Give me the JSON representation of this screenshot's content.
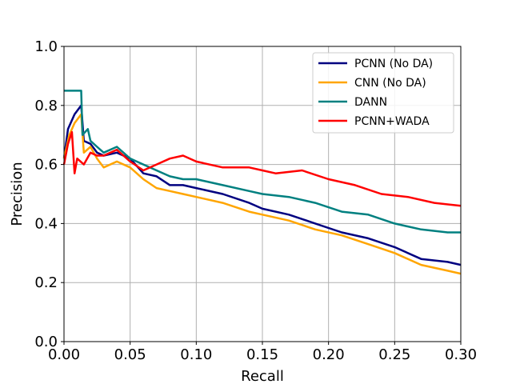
{
  "chart_data": {
    "type": "line",
    "title": "",
    "xlabel": "Recall",
    "ylabel": "Precision",
    "xlim": [
      0.0,
      0.3
    ],
    "ylim": [
      0.0,
      1.0
    ],
    "grid": true,
    "legend_position": "top-right",
    "xticks": [
      "0.00",
      "0.05",
      "0.10",
      "0.15",
      "0.20",
      "0.25",
      "0.30"
    ],
    "yticks": [
      "0.0",
      "0.2",
      "0.4",
      "0.6",
      "0.8",
      "1.0"
    ],
    "series": [
      {
        "name": "PCNN (No DA)",
        "color": "#000080",
        "points": [
          [
            0.0,
            0.62
          ],
          [
            0.003,
            0.72
          ],
          [
            0.008,
            0.77
          ],
          [
            0.013,
            0.8
          ],
          [
            0.015,
            0.68
          ],
          [
            0.02,
            0.67
          ],
          [
            0.025,
            0.64
          ],
          [
            0.03,
            0.63
          ],
          [
            0.04,
            0.64
          ],
          [
            0.05,
            0.62
          ],
          [
            0.06,
            0.57
          ],
          [
            0.07,
            0.56
          ],
          [
            0.08,
            0.53
          ],
          [
            0.09,
            0.53
          ],
          [
            0.1,
            0.52
          ],
          [
            0.12,
            0.5
          ],
          [
            0.14,
            0.47
          ],
          [
            0.15,
            0.45
          ],
          [
            0.17,
            0.43
          ],
          [
            0.19,
            0.4
          ],
          [
            0.21,
            0.37
          ],
          [
            0.23,
            0.35
          ],
          [
            0.25,
            0.32
          ],
          [
            0.27,
            0.28
          ],
          [
            0.29,
            0.27
          ],
          [
            0.3,
            0.26
          ]
        ]
      },
      {
        "name": "CNN (No DA)",
        "color": "#FFA500",
        "points": [
          [
            0.0,
            0.62
          ],
          [
            0.004,
            0.7
          ],
          [
            0.008,
            0.74
          ],
          [
            0.013,
            0.77
          ],
          [
            0.015,
            0.64
          ],
          [
            0.02,
            0.66
          ],
          [
            0.025,
            0.62
          ],
          [
            0.03,
            0.59
          ],
          [
            0.04,
            0.61
          ],
          [
            0.05,
            0.59
          ],
          [
            0.06,
            0.55
          ],
          [
            0.07,
            0.52
          ],
          [
            0.08,
            0.51
          ],
          [
            0.09,
            0.5
          ],
          [
            0.1,
            0.49
          ],
          [
            0.12,
            0.47
          ],
          [
            0.14,
            0.44
          ],
          [
            0.15,
            0.43
          ],
          [
            0.17,
            0.41
          ],
          [
            0.19,
            0.38
          ],
          [
            0.21,
            0.36
          ],
          [
            0.23,
            0.33
          ],
          [
            0.25,
            0.3
          ],
          [
            0.27,
            0.26
          ],
          [
            0.29,
            0.24
          ],
          [
            0.3,
            0.23
          ]
        ]
      },
      {
        "name": "DANN",
        "color": "#008080",
        "points": [
          [
            0.0,
            0.85
          ],
          [
            0.013,
            0.85
          ],
          [
            0.014,
            0.7
          ],
          [
            0.018,
            0.72
          ],
          [
            0.02,
            0.68
          ],
          [
            0.025,
            0.66
          ],
          [
            0.03,
            0.64
          ],
          [
            0.04,
            0.66
          ],
          [
            0.05,
            0.62
          ],
          [
            0.06,
            0.6
          ],
          [
            0.07,
            0.58
          ],
          [
            0.08,
            0.56
          ],
          [
            0.09,
            0.55
          ],
          [
            0.1,
            0.55
          ],
          [
            0.12,
            0.53
          ],
          [
            0.14,
            0.51
          ],
          [
            0.15,
            0.5
          ],
          [
            0.17,
            0.49
          ],
          [
            0.19,
            0.47
          ],
          [
            0.21,
            0.44
          ],
          [
            0.23,
            0.43
          ],
          [
            0.25,
            0.4
          ],
          [
            0.27,
            0.38
          ],
          [
            0.29,
            0.37
          ],
          [
            0.3,
            0.37
          ]
        ]
      },
      {
        "name": "PCNN+WADA",
        "color": "#FF0000",
        "points": [
          [
            0.0,
            0.6
          ],
          [
            0.003,
            0.67
          ],
          [
            0.006,
            0.71
          ],
          [
            0.008,
            0.57
          ],
          [
            0.01,
            0.62
          ],
          [
            0.015,
            0.6
          ],
          [
            0.02,
            0.64
          ],
          [
            0.025,
            0.63
          ],
          [
            0.03,
            0.63
          ],
          [
            0.04,
            0.65
          ],
          [
            0.05,
            0.61
          ],
          [
            0.06,
            0.58
          ],
          [
            0.07,
            0.6
          ],
          [
            0.08,
            0.62
          ],
          [
            0.09,
            0.63
          ],
          [
            0.1,
            0.61
          ],
          [
            0.12,
            0.59
          ],
          [
            0.14,
            0.59
          ],
          [
            0.15,
            0.58
          ],
          [
            0.16,
            0.57
          ],
          [
            0.18,
            0.58
          ],
          [
            0.2,
            0.55
          ],
          [
            0.22,
            0.53
          ],
          [
            0.24,
            0.5
          ],
          [
            0.26,
            0.49
          ],
          [
            0.28,
            0.47
          ],
          [
            0.3,
            0.46
          ]
        ]
      }
    ]
  }
}
